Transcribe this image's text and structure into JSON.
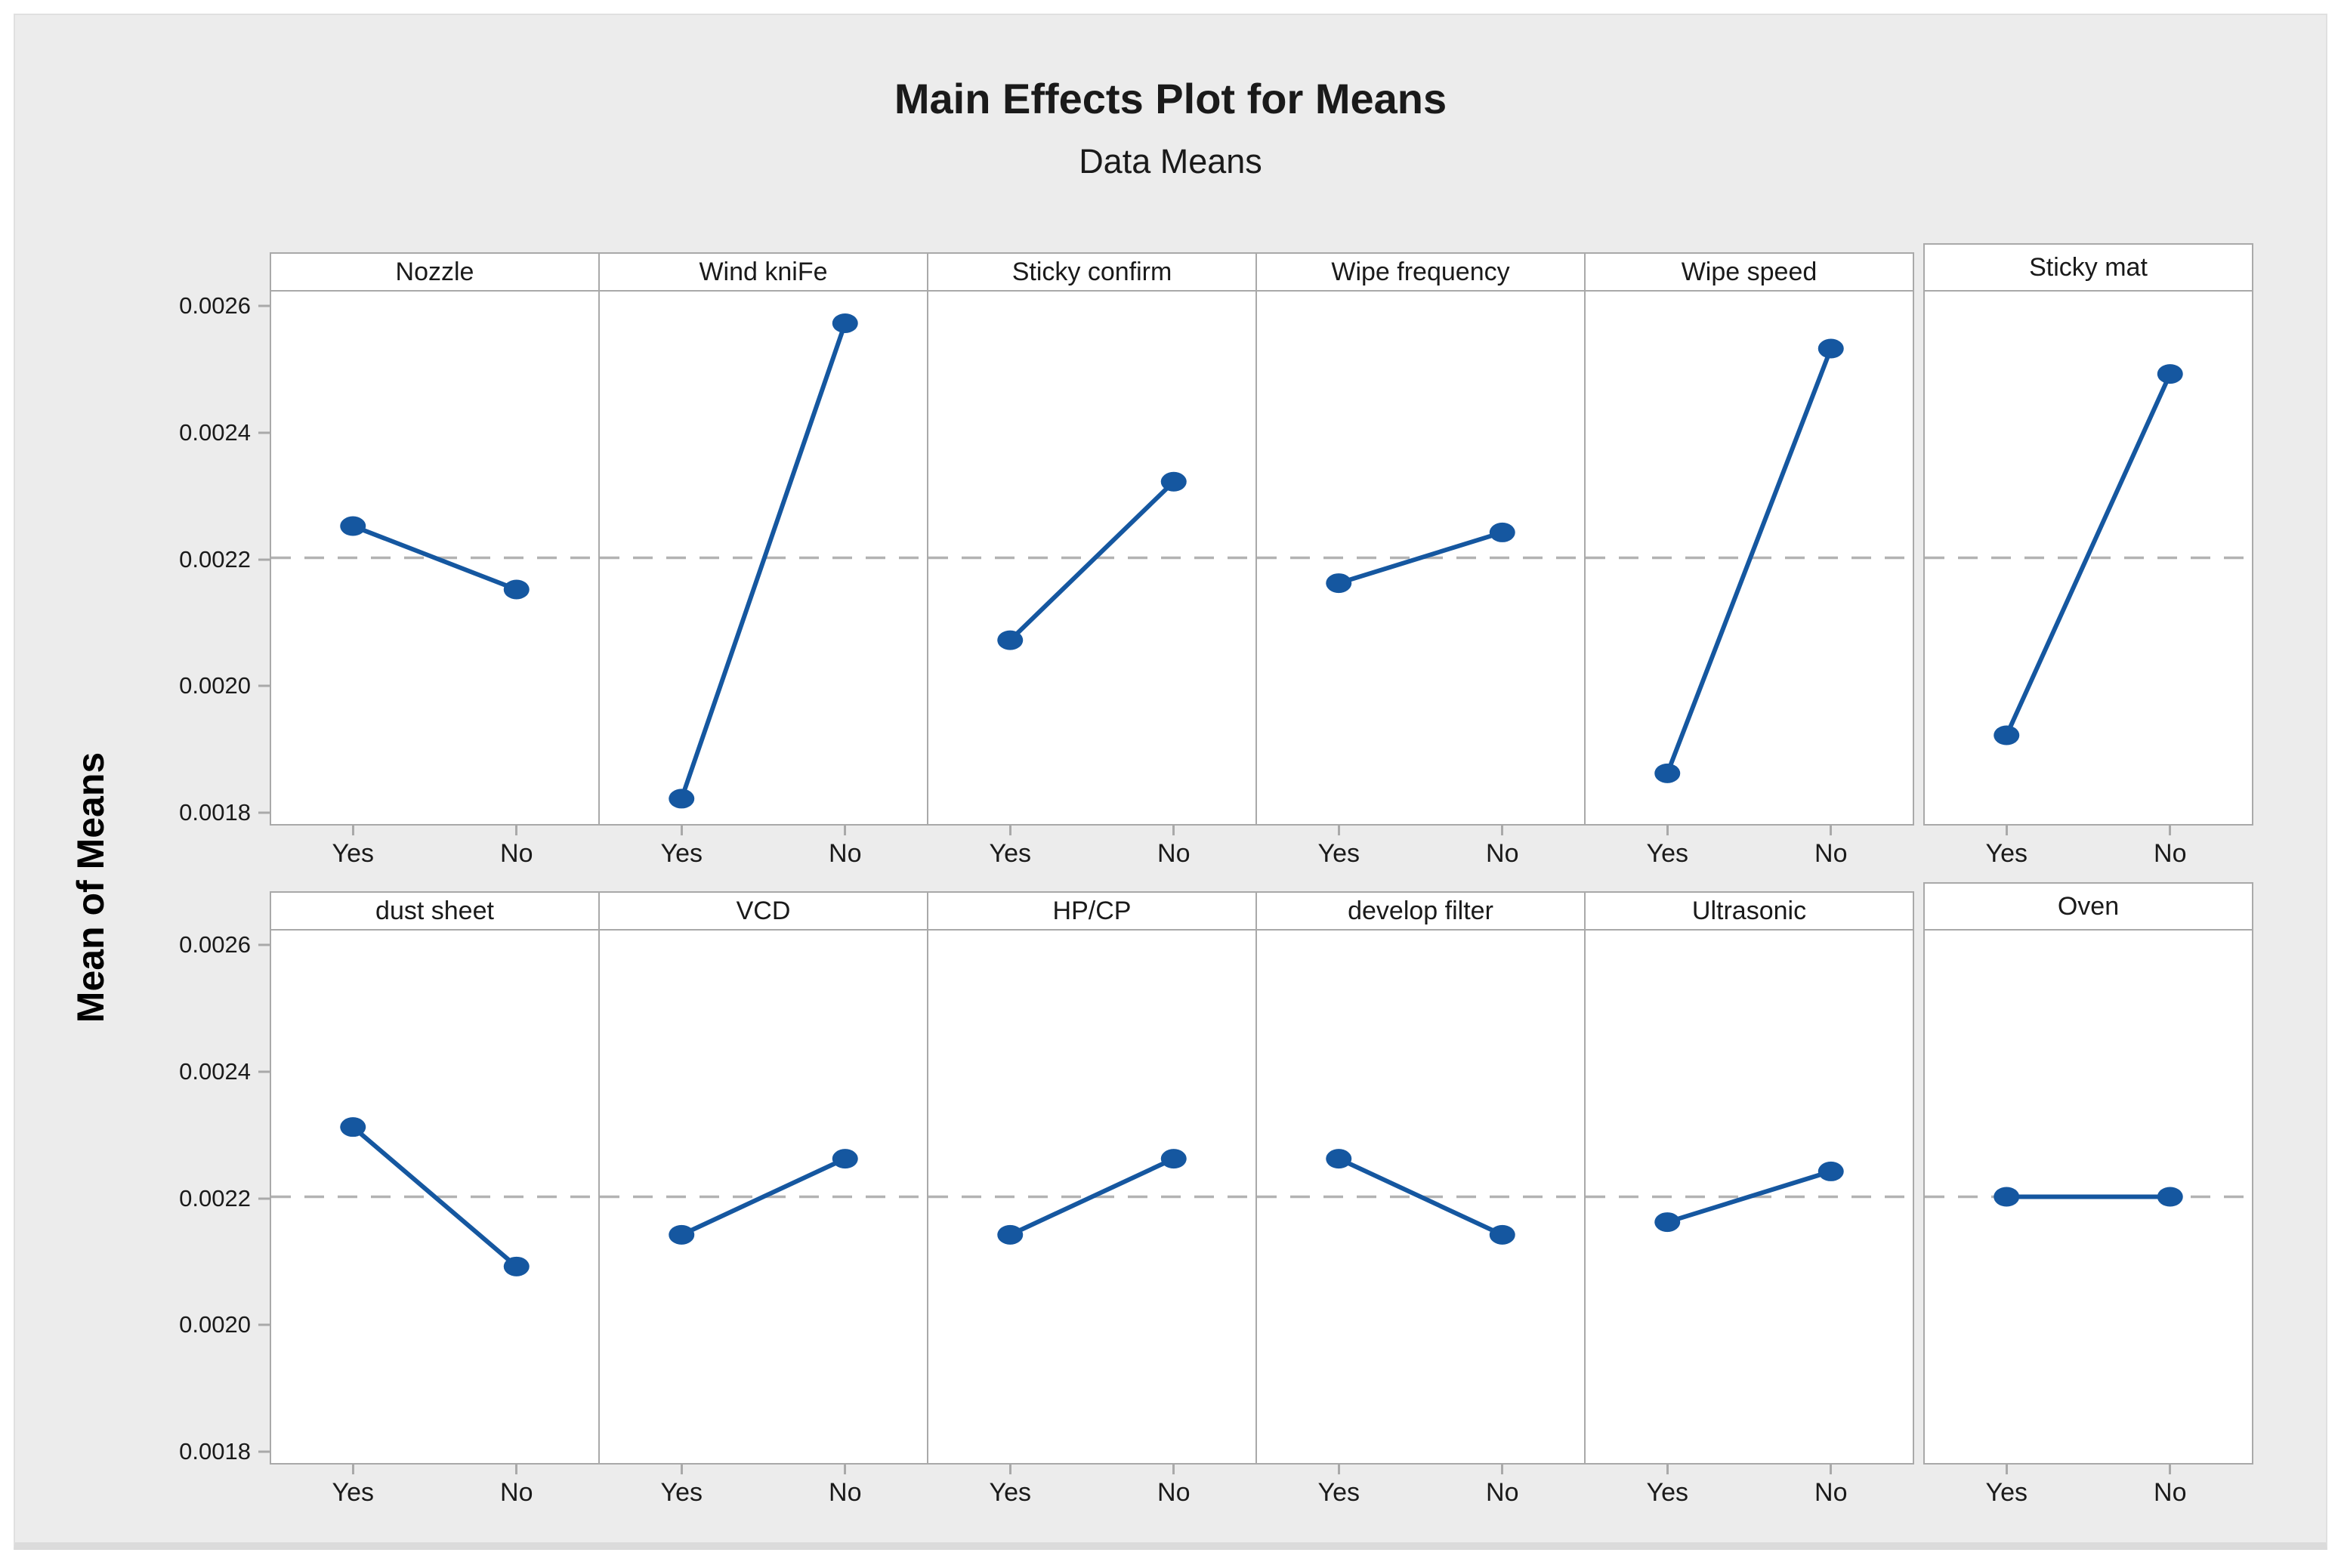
{
  "title": "Main Effects Plot for Means",
  "subtitle": "Data Means",
  "ylabel": "Mean of Means",
  "colors": {
    "accent": "#1557A0",
    "reference_line": "#B3B3B3",
    "panel_border": "#A9A9A9",
    "figure_bg": "#ECECEC",
    "text": "#1A1A1A"
  },
  "chart_data": {
    "type": "line",
    "title": "Main Effects Plot for Means",
    "subtitle": "Data Means",
    "ylabel": "Mean of Means",
    "categories": [
      "Yes",
      "No"
    ],
    "yticks": [
      0.0026,
      0.0024,
      0.0022,
      0.002,
      0.0018
    ],
    "ylim": [
      0.00178,
      0.00262
    ],
    "reference_line": 0.0022,
    "grid": false,
    "legend": "none",
    "rows": [
      {
        "panels": [
          {
            "label": "Nozzle",
            "values": [
              0.00225,
              0.00215
            ]
          },
          {
            "label": "Wind kniFe",
            "values": [
              0.00182,
              0.00257
            ]
          },
          {
            "label": "Sticky confirm",
            "values": [
              0.00207,
              0.00232
            ]
          },
          {
            "label": "Wipe frequency",
            "values": [
              0.00216,
              0.00224
            ]
          },
          {
            "label": "Wipe speed",
            "values": [
              0.00186,
              0.00253
            ]
          },
          {
            "label": "Sticky mat",
            "values": [
              0.00192,
              0.00249
            ]
          }
        ]
      },
      {
        "panels": [
          {
            "label": "dust sheet",
            "values": [
              0.00231,
              0.00209
            ]
          },
          {
            "label": "VCD",
            "values": [
              0.00214,
              0.00226
            ]
          },
          {
            "label": "HP/CP",
            "values": [
              0.00214,
              0.00226
            ]
          },
          {
            "label": "develop filter",
            "values": [
              0.00226,
              0.00214
            ]
          },
          {
            "label": "Ultrasonic",
            "values": [
              0.00216,
              0.00224
            ]
          },
          {
            "label": "Oven",
            "values": [
              0.0022,
              0.0022
            ]
          }
        ]
      }
    ]
  }
}
